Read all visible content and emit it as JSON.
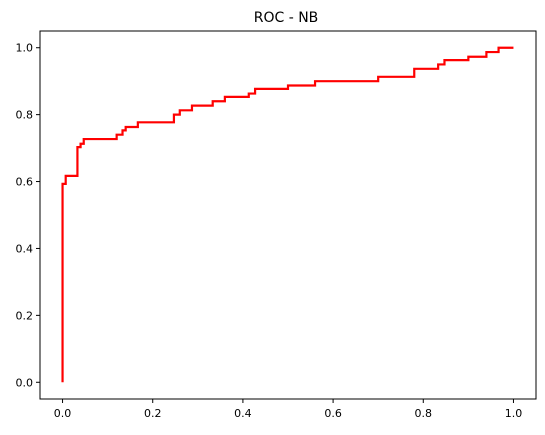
{
  "chart_data": {
    "type": "line",
    "title": "ROC - NB",
    "xlabel": "",
    "ylabel": "",
    "xlim": [
      -0.05,
      1.05
    ],
    "ylim": [
      -0.05,
      1.05
    ],
    "x_ticks": [
      "0.0",
      "0.2",
      "0.4",
      "0.6",
      "0.8",
      "1.0"
    ],
    "y_ticks": [
      "0.0",
      "0.2",
      "0.4",
      "0.6",
      "0.8",
      "1.0"
    ],
    "grid": false,
    "series": [
      {
        "color": "#ff0000",
        "drawstyle": "steps",
        "x": [
          0.0,
          0.0,
          0.0,
          0.007,
          0.007,
          0.033,
          0.033,
          0.04,
          0.04,
          0.047,
          0.047,
          0.12,
          0.12,
          0.133,
          0.133,
          0.14,
          0.14,
          0.167,
          0.167,
          0.247,
          0.247,
          0.26,
          0.26,
          0.287,
          0.287,
          0.333,
          0.333,
          0.36,
          0.36,
          0.413,
          0.413,
          0.427,
          0.427,
          0.5,
          0.5,
          0.56,
          0.56,
          0.7,
          0.7,
          0.78,
          0.78,
          0.833,
          0.833,
          0.847,
          0.847,
          0.9,
          0.9,
          0.94,
          0.94,
          0.967,
          0.967,
          1.0
        ],
        "y": [
          0.0,
          0.593,
          0.593,
          0.593,
          0.617,
          0.617,
          0.703,
          0.703,
          0.713,
          0.713,
          0.727,
          0.727,
          0.74,
          0.74,
          0.753,
          0.753,
          0.763,
          0.763,
          0.777,
          0.777,
          0.8,
          0.8,
          0.813,
          0.813,
          0.827,
          0.827,
          0.84,
          0.84,
          0.853,
          0.853,
          0.863,
          0.863,
          0.877,
          0.877,
          0.887,
          0.887,
          0.9,
          0.9,
          0.913,
          0.913,
          0.937,
          0.937,
          0.95,
          0.95,
          0.963,
          0.963,
          0.973,
          0.973,
          0.987,
          0.987,
          1.0,
          1.0
        ]
      }
    ]
  }
}
